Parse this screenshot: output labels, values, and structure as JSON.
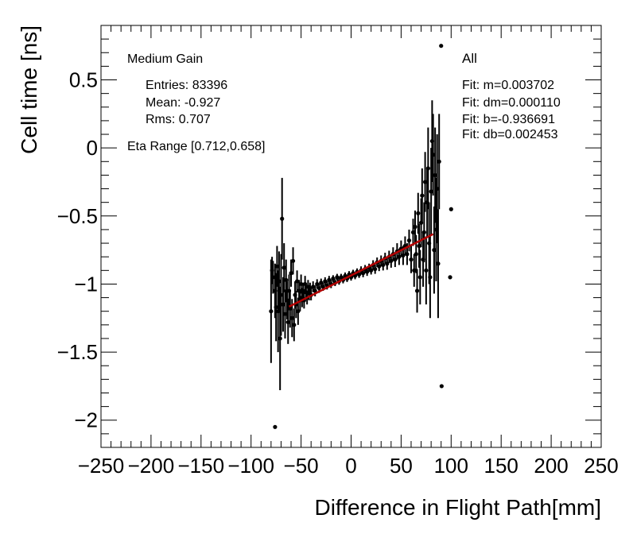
{
  "chart_data": {
    "type": "scatter",
    "title": "",
    "xlabel": "Difference in Flight Path[mm]",
    "ylabel": "Cell time [ns]",
    "xlim": [
      -250,
      250
    ],
    "ylim": [
      -2.2,
      0.9
    ],
    "x_ticks": [
      -250,
      -200,
      -150,
      -100,
      -50,
      0,
      50,
      100,
      150,
      200,
      250
    ],
    "x_tick_labels": [
      "−250",
      "−200",
      "−150",
      "−100",
      "−50",
      "0",
      "50",
      "100",
      "150",
      "200",
      "250"
    ],
    "y_ticks": [
      -2,
      -1.5,
      -1,
      -0.5,
      0,
      0.5
    ],
    "y_tick_labels": [
      "−2",
      "−1.5",
      "−1",
      "−0.5",
      "0",
      "0.5"
    ],
    "stats": {
      "gain": "Medium Gain",
      "entries": "Entries: 83396",
      "mean": "Mean: -0.927",
      "rms": "Rms: 0.707",
      "eta_range": "Eta Range [0.712,0.658]"
    },
    "fit_box": {
      "label": "All",
      "m": "Fit: m=0.003702",
      "dm": "Fit: dm=0.000110",
      "b": "Fit: b=-0.936691",
      "db": "Fit: db=0.002453"
    },
    "fit_line": {
      "x_start": -62,
      "x_end": 82,
      "slope": 0.003702,
      "intercept": -0.936691,
      "color": "#b40000"
    },
    "series": [
      {
        "name": "data",
        "color": "#000000",
        "points": [
          [
            -80,
            -1.2,
            0.38
          ],
          [
            -79,
            -0.9,
            0.1
          ],
          [
            -78,
            -0.95,
            0.12
          ],
          [
            -76,
            -1.05,
            0.2
          ],
          [
            -75,
            -1.17,
            0.25
          ],
          [
            -74,
            -0.87,
            0.15
          ],
          [
            -73,
            -1.2,
            0.3
          ],
          [
            -72,
            -0.98,
            0.22
          ],
          [
            -71,
            -1.4,
            0.38
          ],
          [
            -70,
            -1.08,
            0.3
          ],
          [
            -69,
            -0.52,
            0.3
          ],
          [
            -68,
            -1.15,
            0.2
          ],
          [
            -67,
            -0.88,
            0.18
          ],
          [
            -66,
            -1.22,
            0.18
          ],
          [
            -65,
            -0.97,
            0.15
          ],
          [
            -64,
            -1.12,
            0.14
          ],
          [
            -63,
            -1.28,
            0.16
          ],
          [
            -62,
            -1.05,
            0.12
          ],
          [
            -61,
            -1.18,
            0.14
          ],
          [
            -60,
            -0.92,
            0.1
          ],
          [
            -59,
            -1.25,
            0.14
          ],
          [
            -58,
            -0.83,
            0.1
          ],
          [
            -57,
            -1.3,
            0.12
          ],
          [
            -56,
            -1.08,
            0.1
          ],
          [
            -55,
            -1.15,
            0.1
          ],
          [
            -54,
            -0.98,
            0.08
          ],
          [
            -53,
            -1.2,
            0.1
          ],
          [
            -52,
            -1.05,
            0.08
          ],
          [
            -51,
            -1.12,
            0.08
          ],
          [
            -50,
            -1.0,
            0.07
          ],
          [
            -49,
            -1.1,
            0.07
          ],
          [
            -48,
            -1.05,
            0.06
          ],
          [
            -47,
            -1.12,
            0.06
          ],
          [
            -46,
            -1.0,
            0.06
          ],
          [
            -45,
            -1.06,
            0.05
          ],
          [
            -44,
            -1.1,
            0.05
          ],
          [
            -43,
            -1.02,
            0.05
          ],
          [
            -42,
            -1.07,
            0.05
          ],
          [
            -41,
            -1.03,
            0.04
          ],
          [
            -40,
            -1.08,
            0.04
          ],
          [
            -38,
            -1.02,
            0.04
          ],
          [
            -36,
            -1.05,
            0.04
          ],
          [
            -34,
            -1.0,
            0.035
          ],
          [
            -32,
            -1.03,
            0.035
          ],
          [
            -30,
            -0.99,
            0.03
          ],
          [
            -28,
            -1.02,
            0.03
          ],
          [
            -26,
            -0.98,
            0.03
          ],
          [
            -24,
            -1.01,
            0.03
          ],
          [
            -22,
            -0.97,
            0.03
          ],
          [
            -20,
            -1.0,
            0.03
          ],
          [
            -18,
            -0.96,
            0.025
          ],
          [
            -16,
            -0.99,
            0.025
          ],
          [
            -14,
            -0.95,
            0.025
          ],
          [
            -12,
            -0.98,
            0.025
          ],
          [
            -10,
            -0.95,
            0.025
          ],
          [
            -8,
            -0.97,
            0.025
          ],
          [
            -6,
            -0.94,
            0.025
          ],
          [
            -4,
            -0.96,
            0.025
          ],
          [
            -2,
            -0.93,
            0.025
          ],
          [
            0,
            -0.95,
            0.025
          ],
          [
            2,
            -0.92,
            0.025
          ],
          [
            4,
            -0.94,
            0.025
          ],
          [
            6,
            -0.91,
            0.025
          ],
          [
            8,
            -0.93,
            0.025
          ],
          [
            10,
            -0.9,
            0.03
          ],
          [
            12,
            -0.92,
            0.03
          ],
          [
            14,
            -0.89,
            0.03
          ],
          [
            16,
            -0.91,
            0.03
          ],
          [
            18,
            -0.88,
            0.03
          ],
          [
            20,
            -0.9,
            0.03
          ],
          [
            22,
            -0.86,
            0.035
          ],
          [
            24,
            -0.89,
            0.035
          ],
          [
            26,
            -0.84,
            0.035
          ],
          [
            28,
            -0.87,
            0.035
          ],
          [
            30,
            -0.83,
            0.04
          ],
          [
            32,
            -0.86,
            0.04
          ],
          [
            34,
            -0.81,
            0.04
          ],
          [
            36,
            -0.85,
            0.045
          ],
          [
            38,
            -0.8,
            0.045
          ],
          [
            40,
            -0.83,
            0.05
          ],
          [
            42,
            -0.78,
            0.05
          ],
          [
            44,
            -0.82,
            0.055
          ],
          [
            46,
            -0.76,
            0.06
          ],
          [
            48,
            -0.8,
            0.06
          ],
          [
            50,
            -0.74,
            0.06
          ],
          [
            52,
            -0.79,
            0.07
          ],
          [
            54,
            -0.72,
            0.07
          ],
          [
            56,
            -0.78,
            0.08
          ],
          [
            58,
            -0.68,
            0.08
          ],
          [
            60,
            -0.82,
            0.1
          ],
          [
            62,
            -0.62,
            0.1
          ],
          [
            63,
            -0.9,
            0.12
          ],
          [
            64,
            -0.58,
            0.12
          ],
          [
            65,
            -0.78,
            0.14
          ],
          [
            66,
            -1.05,
            0.16
          ],
          [
            67,
            -0.48,
            0.15
          ],
          [
            68,
            -0.72,
            0.16
          ],
          [
            69,
            -0.95,
            0.2
          ],
          [
            70,
            -0.55,
            0.18
          ],
          [
            71,
            -0.35,
            0.2
          ],
          [
            72,
            -0.82,
            0.2
          ],
          [
            73,
            -0.62,
            0.22
          ],
          [
            74,
            -0.25,
            0.22
          ],
          [
            75,
            -0.9,
            0.25
          ],
          [
            76,
            -0.4,
            0.25
          ],
          [
            77,
            -0.15,
            0.3
          ],
          [
            78,
            -0.7,
            0.3
          ],
          [
            79,
            -0.95,
            0.3
          ],
          [
            80,
            -0.32,
            0.32
          ],
          [
            81,
            0.05,
            0.3
          ],
          [
            82,
            -0.05,
            0.3
          ],
          [
            83,
            -0.75,
            0.32
          ],
          [
            84,
            -0.2,
            0.35
          ],
          [
            85,
            -0.6,
            0.38
          ],
          [
            86,
            -0.3,
            0.4
          ],
          [
            87,
            -0.85,
            0.4
          ],
          [
            88,
            -0.1,
            0.35
          ],
          [
            90,
            0.75,
            0
          ],
          [
            90.5,
            -1.75,
            0
          ],
          [
            99,
            -0.95,
            0
          ],
          [
            100,
            -0.45,
            0
          ],
          [
            -76,
            -2.05,
            0
          ]
        ]
      }
    ]
  }
}
